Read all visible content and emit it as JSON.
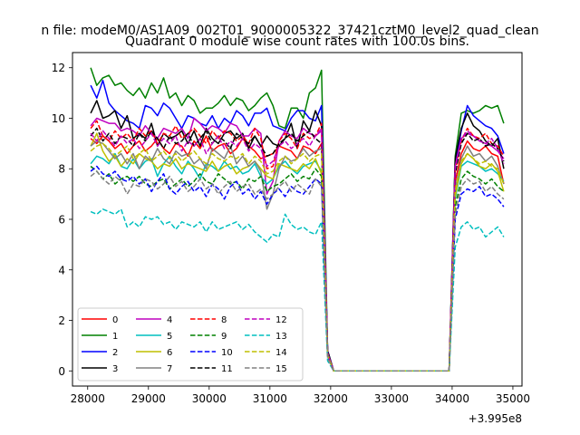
{
  "figure": {
    "suptitle": "n file: modeM0/AS1A09_002T01_9000005322_37421cztM0_level2_quad_clean",
    "title": "Quadrant 0 module wise count rates with 100.0s bins.",
    "offset_text": "+3.995e8"
  },
  "chart_data": {
    "type": "line",
    "title": "Quadrant 0 module wise count rates with 100.0s bins.",
    "xlabel": "",
    "ylabel": "",
    "x_offset": 399500000,
    "xlim": [
      27750,
      35150
    ],
    "ylim": [
      -0.6,
      12.6
    ],
    "xticks": [
      28000,
      29000,
      30000,
      31000,
      32000,
      33000,
      34000,
      35000
    ],
    "yticks": [
      0,
      2,
      4,
      6,
      8,
      10,
      12
    ],
    "grid": false,
    "legend": {
      "placement": "lower-left",
      "columns": 4
    },
    "x": [
      28050,
      28150,
      28250,
      28350,
      28450,
      28550,
      28650,
      28750,
      28850,
      28950,
      29050,
      29150,
      29250,
      29350,
      29450,
      29550,
      29650,
      29750,
      29850,
      29950,
      30050,
      30150,
      30250,
      30350,
      30450,
      30550,
      30650,
      30750,
      30850,
      30950,
      31050,
      31150,
      31250,
      31350,
      31450,
      31550,
      31650,
      31750,
      31850,
      31950,
      32050,
      32150,
      32250,
      32350,
      32450,
      32550,
      32650,
      32750,
      32850,
      32950,
      33050,
      33150,
      33250,
      33350,
      33450,
      33550,
      33650,
      33750,
      33850,
      33950,
      34050,
      34150,
      34250,
      34350,
      34450,
      34550,
      34650,
      34750,
      34850
    ],
    "series": [
      {
        "name": "0",
        "color": "#ff0000",
        "dash": "solid",
        "values": [
          9.2,
          9.0,
          9.3,
          9.1,
          8.8,
          9.0,
          8.6,
          8.9,
          9.1,
          8.7,
          8.9,
          9.2,
          8.8,
          8.6,
          9.0,
          8.9,
          8.5,
          9.1,
          8.8,
          9.3,
          8.7,
          8.9,
          9.0,
          8.6,
          8.8,
          9.2,
          8.9,
          8.7,
          8.4,
          8.5,
          8.6,
          8.9,
          8.8,
          8.7,
          8.4,
          8.9,
          8.8,
          8.6,
          9.0,
          0.7,
          0.0,
          0,
          0,
          0,
          0,
          0,
          0,
          0,
          0,
          0,
          0,
          0,
          0,
          0,
          0,
          0,
          0,
          0,
          0,
          0.0,
          7.5,
          8.6,
          9.1,
          8.8,
          8.7,
          8.9,
          8.6,
          8.5,
          7.4
        ]
      },
      {
        "name": "1",
        "color": "#008000",
        "dash": "solid",
        "values": [
          12.0,
          11.3,
          11.6,
          11.7,
          11.3,
          11.4,
          11.1,
          10.9,
          11.2,
          10.8,
          11.4,
          11.0,
          11.6,
          10.8,
          11.0,
          10.5,
          10.9,
          10.7,
          10.2,
          10.4,
          10.4,
          10.6,
          10.9,
          10.5,
          10.8,
          10.7,
          10.3,
          10.5,
          10.8,
          11.0,
          10.5,
          9.7,
          9.6,
          10.4,
          10.4,
          10.0,
          11.0,
          11.2,
          11.9,
          0.8,
          0.0,
          0,
          0,
          0,
          0,
          0,
          0,
          0,
          0,
          0,
          0,
          0,
          0,
          0,
          0,
          0,
          0,
          0,
          0,
          0.0,
          8.5,
          10.2,
          10.3,
          10.2,
          10.3,
          10.5,
          10.4,
          10.5,
          9.8
        ]
      },
      {
        "name": "2",
        "color": "#0000ff",
        "dash": "solid",
        "values": [
          11.3,
          10.8,
          11.5,
          10.6,
          10.3,
          10.1,
          9.9,
          9.8,
          9.6,
          10.5,
          10.4,
          10.1,
          10.6,
          10.4,
          10.0,
          9.6,
          10.1,
          10.0,
          9.8,
          9.7,
          10.1,
          9.6,
          10.0,
          9.8,
          10.3,
          10.1,
          9.7,
          10.2,
          10.2,
          10.4,
          9.7,
          9.6,
          9.5,
          10.0,
          10.3,
          10.3,
          10.0,
          9.9,
          10.5,
          0.8,
          0.0,
          0,
          0,
          0,
          0,
          0,
          0,
          0,
          0,
          0,
          0,
          0,
          0,
          0,
          0,
          0,
          0,
          0,
          0,
          0.0,
          8.2,
          9.5,
          10.5,
          10.1,
          9.9,
          9.7,
          9.6,
          9.3,
          8.6
        ]
      },
      {
        "name": "3",
        "color": "#000000",
        "dash": "solid",
        "values": [
          10.2,
          10.7,
          10.0,
          10.1,
          10.3,
          9.6,
          10.1,
          9.2,
          9.4,
          9.2,
          9.8,
          8.9,
          9.4,
          9.2,
          9.3,
          9.5,
          9.0,
          9.5,
          8.9,
          9.6,
          9.2,
          9.0,
          9.4,
          9.5,
          9.2,
          9.4,
          8.8,
          9.3,
          8.9,
          9.3,
          9.0,
          8.9,
          9.2,
          9.8,
          8.8,
          9.9,
          9.5,
          10.3,
          9.7,
          0.8,
          0.0,
          0,
          0,
          0,
          0,
          0,
          0,
          0,
          0,
          0,
          0,
          0,
          0,
          0,
          0,
          0,
          0,
          0,
          0,
          0.0,
          8.4,
          9.6,
          10.2,
          9.7,
          9.5,
          9.1,
          8.9,
          9.2,
          8.0
        ]
      },
      {
        "name": "4",
        "color": "#bf00bf",
        "dash": "solid",
        "values": [
          9.7,
          10.0,
          9.9,
          9.8,
          9.8,
          9.5,
          9.6,
          9.5,
          9.3,
          9.7,
          9.4,
          9.2,
          9.6,
          9.5,
          9.4,
          9.6,
          9.2,
          10.0,
          9.8,
          9.5,
          9.7,
          9.6,
          9.4,
          9.8,
          9.7,
          9.3,
          9.3,
          9.6,
          9.4,
          7.0,
          7.5,
          9.1,
          9.5,
          9.3,
          9.2,
          9.6,
          9.4,
          9.3,
          9.5,
          0.7,
          0.0,
          0,
          0,
          0,
          0,
          0,
          0,
          0,
          0,
          0,
          0,
          0,
          0,
          0,
          0,
          0,
          0,
          0,
          0,
          0.0,
          8.1,
          9.2,
          9.4,
          9.3,
          9.1,
          9.0,
          8.9,
          8.7,
          8.4
        ]
      },
      {
        "name": "5",
        "color": "#00bfbf",
        "dash": "solid",
        "values": [
          8.2,
          8.5,
          8.4,
          8.2,
          8.6,
          8.1,
          8.0,
          8.4,
          8.0,
          8.3,
          8.4,
          7.7,
          8.2,
          8.5,
          8.1,
          7.8,
          8.3,
          8.0,
          7.6,
          8.2,
          8.1,
          7.9,
          8.3,
          8.0,
          8.1,
          7.8,
          7.9,
          8.2,
          7.7,
          7.4,
          7.6,
          8.1,
          8.3,
          8.0,
          7.8,
          8.1,
          8.2,
          8.3,
          7.9,
          0.6,
          0.0,
          0,
          0,
          0,
          0,
          0,
          0,
          0,
          0,
          0,
          0,
          0,
          0,
          0,
          0,
          0,
          0,
          0,
          0,
          0.0,
          6.8,
          8.1,
          8.3,
          8.2,
          8.1,
          7.9,
          8.0,
          7.8,
          7.5
        ]
      },
      {
        "name": "6",
        "color": "#bfbf00",
        "dash": "solid",
        "values": [
          8.9,
          9.4,
          8.7,
          8.3,
          8.5,
          8.1,
          8.4,
          8.2,
          8.6,
          8.4,
          8.3,
          8.0,
          8.2,
          8.1,
          8.4,
          8.0,
          8.2,
          8.1,
          8.0,
          7.9,
          8.3,
          7.9,
          8.1,
          8.2,
          7.8,
          8.0,
          8.1,
          8.3,
          8.0,
          7.7,
          7.6,
          8.2,
          8.1,
          8.0,
          7.9,
          8.2,
          8.0,
          8.4,
          7.8,
          0.6,
          0.0,
          0,
          0,
          0,
          0,
          0,
          0,
          0,
          0,
          0,
          0,
          0,
          0,
          0,
          0,
          0,
          0,
          0,
          0,
          0.0,
          6.9,
          8.2,
          8.6,
          8.4,
          8.1,
          8.0,
          8.2,
          7.9,
          7.1
        ]
      },
      {
        "name": "7",
        "color": "#808080",
        "dash": "solid",
        "values": [
          8.9,
          9.1,
          9.0,
          8.7,
          8.4,
          8.6,
          8.2,
          8.6,
          8.0,
          8.5,
          8.3,
          8.8,
          8.4,
          8.2,
          8.7,
          8.5,
          8.6,
          8.2,
          8.4,
          8.0,
          8.8,
          8.6,
          8.4,
          8.9,
          8.2,
          8.5,
          8.1,
          8.3,
          7.9,
          6.4,
          7.0,
          8.0,
          8.5,
          8.3,
          8.4,
          8.8,
          8.5,
          8.7,
          8.8,
          0.7,
          0.0,
          0,
          0,
          0,
          0,
          0,
          0,
          0,
          0,
          0,
          0,
          0,
          0,
          0,
          0,
          0,
          0,
          0,
          0,
          0.0,
          7.2,
          8.4,
          8.9,
          8.5,
          8.6,
          8.3,
          8.5,
          8.1,
          7.4
        ]
      },
      {
        "name": "8",
        "color": "#ff0000",
        "dash": "dashed",
        "values": [
          9.6,
          9.9,
          9.3,
          9.1,
          9.5,
          9.2,
          9.4,
          9.1,
          9.6,
          9.3,
          9.5,
          9.0,
          9.4,
          9.3,
          9.7,
          9.2,
          9.4,
          9.6,
          9.3,
          9.0,
          9.5,
          9.2,
          9.5,
          9.4,
          9.1,
          9.3,
          9.0,
          9.6,
          9.2,
          8.0,
          8.1,
          9.1,
          9.4,
          9.2,
          8.8,
          9.4,
          9.2,
          9.3,
          9.8,
          0.7,
          0.0,
          0,
          0,
          0,
          0,
          0,
          0,
          0,
          0,
          0,
          0,
          0,
          0,
          0,
          0,
          0,
          0,
          0,
          0,
          0.0,
          7.9,
          9.1,
          9.6,
          9.3,
          9.2,
          9.4,
          9.0,
          8.9,
          8.5
        ]
      },
      {
        "name": "9",
        "color": "#008000",
        "dash": "dashed",
        "values": [
          8.1,
          7.9,
          7.6,
          7.8,
          7.4,
          7.6,
          7.7,
          7.5,
          7.7,
          7.4,
          7.3,
          7.5,
          7.6,
          7.2,
          7.4,
          7.6,
          7.3,
          7.5,
          7.8,
          7.5,
          7.4,
          7.8,
          7.6,
          7.4,
          7.5,
          7.2,
          7.6,
          7.5,
          7.7,
          7.1,
          7.3,
          7.4,
          7.6,
          7.8,
          7.5,
          7.7,
          7.6,
          8.0,
          7.7,
          0.6,
          0.0,
          0,
          0,
          0,
          0,
          0,
          0,
          0,
          0,
          0,
          0,
          0,
          0,
          0,
          0,
          0,
          0,
          0,
          0,
          0.0,
          6.5,
          7.6,
          7.9,
          7.7,
          7.6,
          7.4,
          7.6,
          7.3,
          7.1
        ]
      },
      {
        "name": "10",
        "color": "#0000ff",
        "dash": "dashed",
        "values": [
          7.9,
          8.1,
          7.8,
          7.7,
          7.9,
          7.6,
          7.5,
          7.7,
          7.4,
          7.6,
          7.1,
          7.5,
          7.8,
          7.2,
          7.0,
          7.3,
          7.5,
          7.1,
          7.3,
          6.9,
          7.4,
          7.2,
          6.8,
          7.3,
          7.5,
          7.0,
          7.2,
          6.8,
          7.1,
          6.6,
          7.0,
          7.2,
          6.9,
          7.3,
          7.1,
          7.0,
          7.3,
          7.6,
          7.4,
          0.6,
          0.0,
          0,
          0,
          0,
          0,
          0,
          0,
          0,
          0,
          0,
          0,
          0,
          0,
          0,
          0,
          0,
          0,
          0,
          0,
          0.0,
          6.0,
          7.0,
          7.2,
          7.1,
          7.3,
          6.9,
          7.0,
          6.8,
          6.5
        ]
      },
      {
        "name": "11",
        "color": "#000000",
        "dash": "dashed",
        "values": [
          9.3,
          9.6,
          9.1,
          9.4,
          9.0,
          9.3,
          9.2,
          8.9,
          9.4,
          9.1,
          9.5,
          9.2,
          8.8,
          9.3,
          9.0,
          9.1,
          9.4,
          8.9,
          9.2,
          9.5,
          9.0,
          9.3,
          9.1,
          8.8,
          9.4,
          9.2,
          9.0,
          9.3,
          8.9,
          8.5,
          8.6,
          9.0,
          9.2,
          9.4,
          9.1,
          9.3,
          9.5,
          9.2,
          9.0,
          0.7,
          0.0,
          0,
          0,
          0,
          0,
          0,
          0,
          0,
          0,
          0,
          0,
          0,
          0,
          0,
          0,
          0,
          0,
          0,
          0,
          0.0,
          7.8,
          9.0,
          9.4,
          9.1,
          9.2,
          8.9,
          9.0,
          8.8,
          8.3
        ]
      },
      {
        "name": "12",
        "color": "#bf00bf",
        "dash": "dashed",
        "values": [
          9.4,
          9.1,
          9.5,
          9.2,
          8.9,
          9.3,
          9.0,
          9.2,
          8.8,
          9.1,
          9.4,
          8.9,
          9.2,
          9.0,
          9.3,
          8.7,
          9.1,
          8.9,
          9.2,
          8.6,
          9.0,
          9.3,
          8.8,
          9.1,
          8.9,
          9.2,
          8.7,
          9.0,
          8.8,
          8.1,
          8.3,
          8.9,
          9.1,
          8.8,
          9.0,
          9.2,
          8.9,
          9.3,
          9.6,
          0.7,
          0.0,
          0,
          0,
          0,
          0,
          0,
          0,
          0,
          0,
          0,
          0,
          0,
          0,
          0,
          0,
          0,
          0,
          0,
          0,
          0.0,
          8.0,
          9.2,
          9.5,
          9.3,
          9.1,
          9.0,
          9.2,
          8.8,
          8.2
        ]
      },
      {
        "name": "13",
        "color": "#00bfbf",
        "dash": "dashed",
        "values": [
          6.3,
          6.2,
          6.4,
          6.3,
          6.2,
          6.4,
          5.7,
          5.9,
          5.7,
          6.1,
          6.0,
          6.1,
          5.8,
          5.9,
          5.6,
          5.9,
          5.8,
          5.7,
          5.9,
          5.5,
          5.9,
          5.6,
          5.7,
          5.8,
          5.9,
          5.6,
          5.8,
          5.5,
          5.3,
          5.1,
          5.4,
          5.3,
          6.2,
          5.8,
          5.6,
          5.7,
          5.5,
          5.4,
          5.9,
          0.4,
          0.0,
          0,
          0,
          0,
          0,
          0,
          0,
          0,
          0,
          0,
          0,
          0,
          0,
          0,
          0,
          0,
          0,
          0,
          0,
          0.0,
          4.9,
          5.7,
          5.9,
          5.6,
          5.7,
          5.3,
          5.5,
          5.7,
          5.3
        ]
      },
      {
        "name": "14",
        "color": "#bfbf00",
        "dash": "dashed",
        "values": [
          8.7,
          8.9,
          9.0,
          8.8,
          8.5,
          8.7,
          8.9,
          8.4,
          8.6,
          8.8,
          8.3,
          8.5,
          8.7,
          8.4,
          8.6,
          8.3,
          8.5,
          8.7,
          8.4,
          8.2,
          8.6,
          8.4,
          8.3,
          8.5,
          8.4,
          8.6,
          8.2,
          8.5,
          8.3,
          7.8,
          7.9,
          8.3,
          8.5,
          8.2,
          8.4,
          8.6,
          8.3,
          8.5,
          8.6,
          0.6,
          0.0,
          0,
          0,
          0,
          0,
          0,
          0,
          0,
          0,
          0,
          0,
          0,
          0,
          0,
          0,
          0,
          0,
          0,
          0,
          0.0,
          7.1,
          8.3,
          8.6,
          8.4,
          8.2,
          8.3,
          8.1,
          8.0,
          7.4
        ]
      },
      {
        "name": "15",
        "color": "#808080",
        "dash": "dashed",
        "values": [
          7.7,
          7.9,
          7.6,
          7.4,
          7.7,
          7.5,
          7.0,
          7.4,
          7.3,
          7.6,
          7.5,
          7.2,
          7.4,
          7.7,
          7.3,
          7.5,
          7.1,
          7.3,
          7.6,
          7.2,
          7.4,
          7.0,
          7.3,
          7.5,
          7.1,
          7.3,
          7.4,
          7.0,
          7.2,
          6.8,
          7.0,
          7.3,
          7.5,
          7.1,
          7.4,
          7.2,
          7.0,
          7.6,
          7.3,
          0.5,
          0.0,
          0,
          0,
          0,
          0,
          0,
          0,
          0,
          0,
          0,
          0,
          0,
          0,
          0,
          0,
          0,
          0,
          0,
          0,
          0.0,
          6.2,
          7.3,
          7.6,
          7.4,
          7.5,
          7.1,
          7.3,
          7.0,
          6.8
        ]
      }
    ]
  }
}
